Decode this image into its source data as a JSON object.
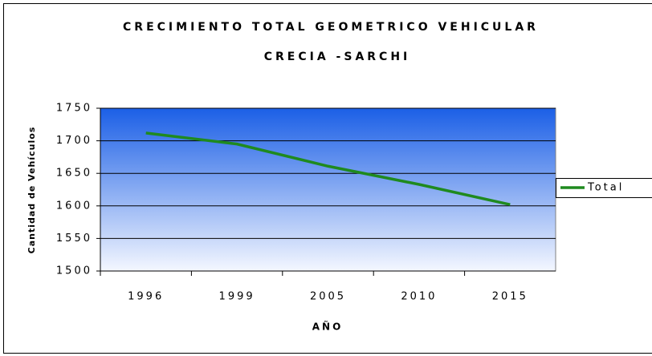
{
  "chart_data": {
    "type": "line",
    "title": "CRECIMIENTO TOTAL GEOMETRICO VEHICULAR",
    "subtitle": "CRECIA -SARCHI",
    "x_label": "AÑO",
    "y_label": "Cantidad de Vehículos",
    "categories": [
      "1996",
      "1999",
      "2005",
      "2010",
      "2015"
    ],
    "series": [
      {
        "name": "Total",
        "color": "#1f8a1f",
        "values": [
          1712,
          1695,
          1661,
          1633,
          1602
        ]
      }
    ],
    "ylim": [
      1500,
      1750
    ],
    "yticks": [
      1500,
      1550,
      1600,
      1650,
      1700,
      1750
    ],
    "grid": true,
    "legend": "right"
  }
}
